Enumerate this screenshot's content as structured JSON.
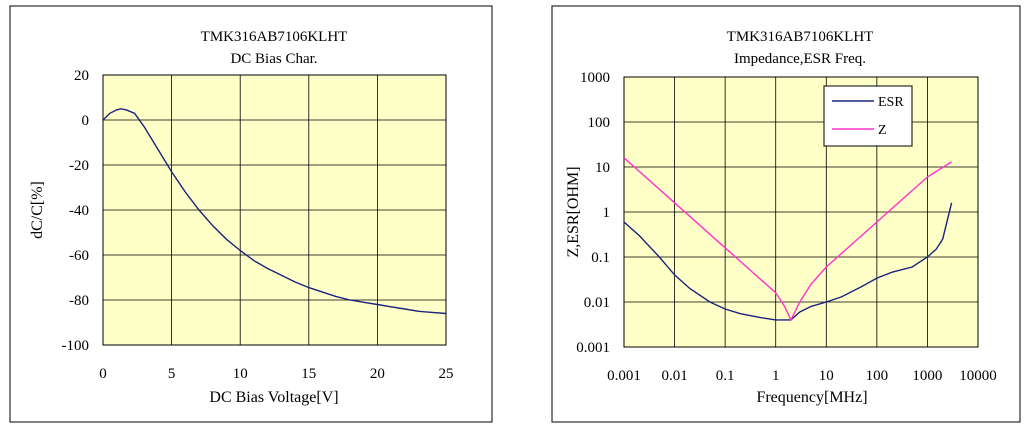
{
  "chart_data": [
    {
      "type": "line",
      "title": "TMK316AB7106KLHT",
      "subtitle": "DC Bias Char.",
      "xlabel": "DC Bias Voltage[V]",
      "ylabel": "dC/C[%]",
      "xlim": [
        0,
        25
      ],
      "ylim": [
        -100,
        20
      ],
      "xticks": [
        0,
        5,
        10,
        15,
        20,
        25
      ],
      "yticks": [
        20,
        0,
        -20,
        -40,
        -60,
        -80,
        -100
      ],
      "grid": true,
      "plot_bg": "#ffffc8",
      "series": [
        {
          "color": "#1a237e",
          "x": [
            0,
            0.5,
            1,
            1.3,
            1.7,
            2.3,
            3,
            4,
            5,
            6,
            7,
            8,
            9,
            10,
            11,
            12,
            13,
            14,
            15,
            16,
            17,
            18,
            19,
            20,
            21,
            22,
            23,
            24,
            25
          ],
          "y": [
            0,
            3,
            4.5,
            5,
            4.5,
            3,
            -3,
            -13,
            -23,
            -32,
            -40,
            -47,
            -53,
            -58,
            -62.5,
            -66,
            -69,
            -72,
            -74.5,
            -76.5,
            -78.5,
            -80,
            -81,
            -82,
            -83,
            -84,
            -85,
            -85.5,
            -86
          ]
        }
      ]
    },
    {
      "type": "line",
      "title": "TMK316AB7106KLHT",
      "subtitle": "Impedance,ESR Freq.",
      "xlabel": "Frequency[MHz]",
      "ylabel": "Z,ESR[OHM]",
      "xscale": "log",
      "yscale": "log",
      "xlim": [
        0.001,
        10000
      ],
      "ylim": [
        0.001,
        1000
      ],
      "xticks": [
        "0.001",
        "0.01",
        "0.1",
        "1",
        "10",
        "100",
        "1000",
        "10000"
      ],
      "yticks": [
        "1000",
        "100",
        "10",
        "1",
        "0.1",
        "0.01",
        "0.001"
      ],
      "grid": true,
      "plot_bg": "#ffffc8",
      "legend": "top-right",
      "series": [
        {
          "name": "ESR",
          "color": "#1a237e",
          "x": [
            0.001,
            0.002,
            0.005,
            0.01,
            0.02,
            0.05,
            0.1,
            0.2,
            0.5,
            1,
            2,
            3,
            5,
            10,
            20,
            50,
            100,
            200,
            500,
            1000,
            1500,
            2000,
            3000
          ],
          "y": [
            0.6,
            0.3,
            0.1,
            0.04,
            0.02,
            0.01,
            0.007,
            0.0055,
            0.0045,
            0.004,
            0.004,
            0.006,
            0.008,
            0.01,
            0.013,
            0.022,
            0.034,
            0.046,
            0.06,
            0.1,
            0.15,
            0.25,
            1.6
          ]
        },
        {
          "name": "Z",
          "color": "#ff33cc",
          "x": [
            0.001,
            0.01,
            0.1,
            1,
            1.5,
            2,
            3,
            5,
            10,
            100,
            1000,
            3000
          ],
          "y": [
            16,
            1.6,
            0.16,
            0.016,
            0.008,
            0.004,
            0.01,
            0.025,
            0.06,
            0.6,
            6,
            13
          ]
        }
      ]
    }
  ]
}
